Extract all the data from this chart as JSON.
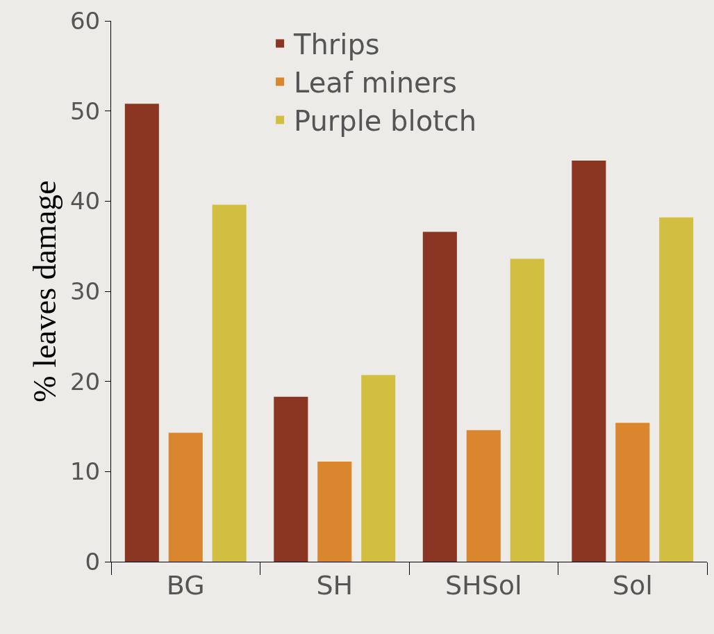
{
  "chart_data": {
    "type": "bar",
    "ylabel": "% leaves damage",
    "categories": [
      "BG",
      "SH",
      "SHSol",
      "Sol"
    ],
    "series": [
      {
        "name": "Thrips",
        "color": "#8b3523",
        "values": [
          50.8,
          18.3,
          36.6,
          44.5
        ]
      },
      {
        "name": "Leaf miners",
        "color": "#d9862e",
        "values": [
          14.3,
          11.1,
          14.6,
          15.4
        ]
      },
      {
        "name": "Purple blotch",
        "color": "#d2bf42",
        "values": [
          39.6,
          20.7,
          33.6,
          38.2
        ]
      }
    ],
    "ylim": [
      0,
      60
    ],
    "yticks": [
      0,
      10,
      20,
      30,
      40,
      50,
      60
    ],
    "grid": false,
    "legend": "top"
  }
}
